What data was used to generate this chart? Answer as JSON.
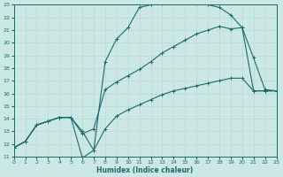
{
  "xlabel": "Humidex (Indice chaleur)",
  "xlim": [
    0,
    23
  ],
  "ylim": [
    11,
    23
  ],
  "xticks": [
    0,
    1,
    2,
    3,
    4,
    5,
    6,
    7,
    8,
    9,
    10,
    11,
    12,
    13,
    14,
    15,
    16,
    17,
    18,
    19,
    20,
    21,
    22,
    23
  ],
  "yticks": [
    11,
    12,
    13,
    14,
    15,
    16,
    17,
    18,
    19,
    20,
    21,
    22,
    23
  ],
  "bg_color": "#cce8e5",
  "line_color": "#1a6b6b",
  "grid_color": "#b8d8d4",
  "line1_x": [
    0,
    1,
    2,
    3,
    4,
    5,
    6,
    7,
    8,
    9,
    10,
    11,
    12,
    13,
    14,
    15,
    16,
    17,
    18,
    19,
    20,
    21,
    22,
    23
  ],
  "line1_y": [
    11.7,
    12.2,
    13.5,
    13.8,
    14.1,
    14.1,
    10.9,
    11.5,
    18.5,
    20.3,
    21.2,
    22.8,
    23.0,
    23.1,
    23.2,
    23.2,
    23.1,
    23.0,
    22.8,
    22.2,
    21.2,
    18.8,
    16.3,
    16.2
  ],
  "line2_x": [
    0,
    1,
    2,
    3,
    4,
    5,
    6,
    7,
    8,
    9,
    10,
    11,
    12,
    13,
    14,
    15,
    16,
    17,
    18,
    19,
    20,
    21,
    22,
    23
  ],
  "line2_y": [
    11.7,
    12.2,
    13.5,
    13.8,
    14.1,
    14.1,
    12.8,
    13.2,
    16.3,
    16.9,
    17.4,
    17.9,
    18.5,
    19.2,
    19.7,
    20.2,
    20.7,
    21.0,
    21.3,
    21.1,
    21.2,
    16.2,
    16.2,
    16.2
  ],
  "line3_x": [
    0,
    1,
    2,
    3,
    4,
    5,
    6,
    7,
    8,
    9,
    10,
    11,
    12,
    13,
    14,
    15,
    16,
    17,
    18,
    19,
    20,
    21,
    22,
    23
  ],
  "line3_y": [
    11.7,
    12.2,
    13.5,
    13.8,
    14.1,
    14.1,
    13.0,
    11.5,
    13.2,
    14.2,
    14.7,
    15.1,
    15.5,
    15.9,
    16.2,
    16.4,
    16.6,
    16.8,
    17.0,
    17.2,
    17.2,
    16.2,
    16.2,
    16.2
  ],
  "figsize": [
    3.2,
    2.0
  ],
  "dpi": 100,
  "linewidth": 0.8,
  "markersize": 3.0,
  "tick_fontsize": 4.5,
  "xlabel_fontsize": 5.5
}
